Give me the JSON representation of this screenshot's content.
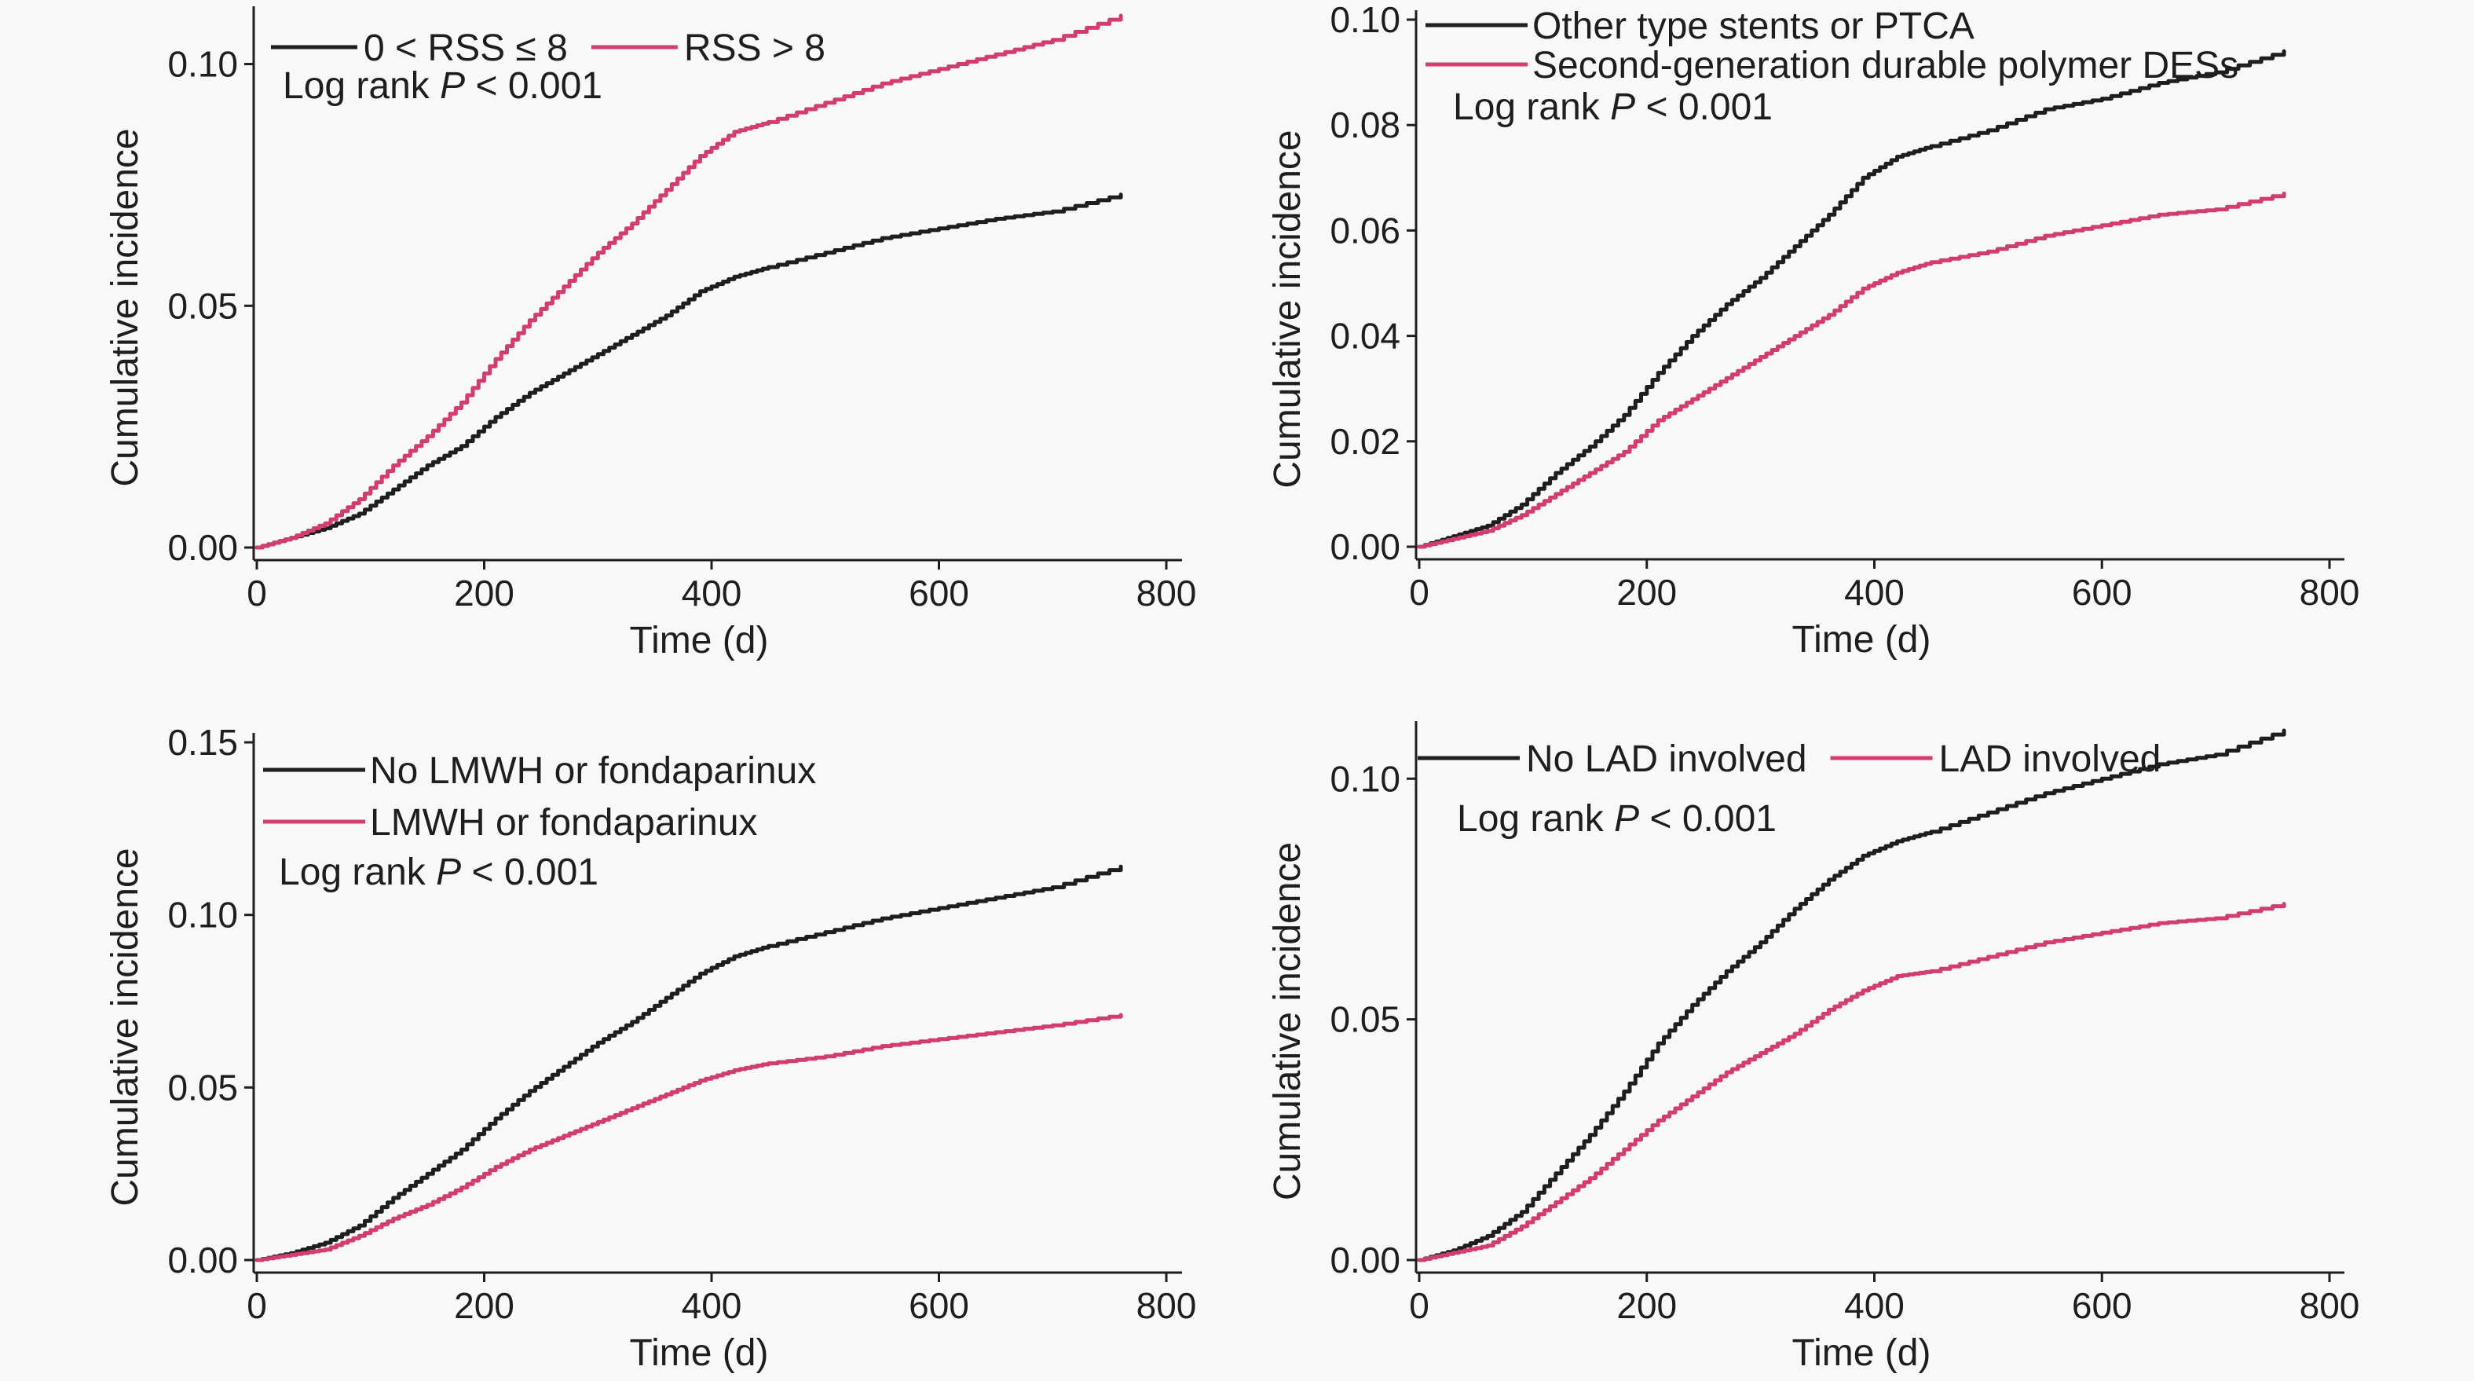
{
  "colors": {
    "black_series": "#1e1e1e",
    "pink_series": "#d23c6e",
    "background": "#f8f8f8"
  },
  "chart_data": [
    {
      "type": "line",
      "xlabel": "Time (d)",
      "ylabel": "Cumulative incidence",
      "xlim": [
        0,
        800
      ],
      "ylim": [
        0,
        0.11
      ],
      "xticks": [
        0,
        200,
        400,
        600,
        800
      ],
      "xtick_labels": [
        "0",
        "200",
        "400",
        "600",
        "800"
      ],
      "yticks": [
        0,
        0.05,
        0.1
      ],
      "ytick_labels": [
        "0.00",
        "0.05",
        "0.10"
      ],
      "legend_layout": "row",
      "legend_position": "top-left",
      "annotation": {
        "prefix": "Log rank ",
        "italic": "P",
        "suffix": " < 0.001"
      },
      "series": [
        {
          "name": "0 < RSS ≤ 8",
          "color": "#1e1e1e",
          "x": [
            0,
            30,
            60,
            90,
            120,
            150,
            180,
            210,
            240,
            270,
            300,
            330,
            360,
            390,
            420,
            450,
            500,
            550,
            600,
            650,
            700,
            760
          ],
          "y": [
            0,
            0.002,
            0.004,
            0.007,
            0.012,
            0.017,
            0.021,
            0.027,
            0.032,
            0.036,
            0.04,
            0.044,
            0.048,
            0.053,
            0.056,
            0.058,
            0.061,
            0.064,
            0.066,
            0.068,
            0.0695,
            0.073
          ]
        },
        {
          "name": "RSS > 8",
          "color": "#d23c6e",
          "x": [
            0,
            30,
            60,
            90,
            120,
            150,
            180,
            210,
            240,
            270,
            300,
            330,
            360,
            390,
            420,
            450,
            500,
            550,
            600,
            650,
            700,
            760
          ],
          "y": [
            0,
            0.002,
            0.005,
            0.01,
            0.017,
            0.023,
            0.03,
            0.039,
            0.047,
            0.054,
            0.061,
            0.067,
            0.074,
            0.081,
            0.086,
            0.088,
            0.092,
            0.096,
            0.099,
            0.102,
            0.105,
            0.11
          ]
        }
      ]
    },
    {
      "type": "line",
      "xlabel": "Time (d)",
      "ylabel": "Cumulative incidence",
      "xlim": [
        0,
        800
      ],
      "ylim": [
        0,
        0.1
      ],
      "xticks": [
        0,
        200,
        400,
        600,
        800
      ],
      "xtick_labels": [
        "0",
        "200",
        "400",
        "600",
        "800"
      ],
      "yticks": [
        0,
        0.02,
        0.04,
        0.06,
        0.08,
        0.1
      ],
      "ytick_labels": [
        "0.00",
        "0.02",
        "0.04",
        "0.06",
        "0.08",
        "0.10"
      ],
      "legend_layout": "column",
      "legend_position": "top-left",
      "annotation": {
        "prefix": "Log rank ",
        "italic": "P",
        "suffix": " < 0.001"
      },
      "series": [
        {
          "name": "Other type stents or PTCA",
          "color": "#1e1e1e",
          "x": [
            0,
            30,
            60,
            90,
            120,
            150,
            180,
            210,
            240,
            270,
            300,
            330,
            360,
            390,
            420,
            450,
            500,
            550,
            600,
            650,
            700,
            760
          ],
          "y": [
            0,
            0.002,
            0.004,
            0.008,
            0.014,
            0.019,
            0.025,
            0.033,
            0.04,
            0.046,
            0.051,
            0.057,
            0.063,
            0.07,
            0.074,
            0.076,
            0.079,
            0.083,
            0.085,
            0.088,
            0.09,
            0.094
          ]
        },
        {
          "name": "Second-generation durable polymer DESs",
          "color": "#d23c6e",
          "x": [
            0,
            30,
            60,
            90,
            120,
            150,
            180,
            210,
            240,
            270,
            300,
            330,
            360,
            390,
            420,
            450,
            500,
            550,
            600,
            650,
            700,
            760
          ],
          "y": [
            0,
            0.0015,
            0.003,
            0.006,
            0.01,
            0.014,
            0.018,
            0.024,
            0.028,
            0.032,
            0.036,
            0.04,
            0.044,
            0.049,
            0.052,
            0.054,
            0.056,
            0.059,
            0.061,
            0.063,
            0.064,
            0.067
          ]
        }
      ]
    },
    {
      "type": "line",
      "xlabel": "Time (d)",
      "ylabel": "Cumulative incidence",
      "xlim": [
        0,
        800
      ],
      "ylim": [
        0,
        0.15
      ],
      "xticks": [
        0,
        200,
        400,
        600,
        800
      ],
      "xtick_labels": [
        "0",
        "200",
        "400",
        "600",
        "800"
      ],
      "yticks": [
        0,
        0.05,
        0.1,
        0.15
      ],
      "ytick_labels": [
        "0.00",
        "0.05",
        "0.10",
        "0.15"
      ],
      "legend_layout": "column",
      "legend_position": "top-left",
      "annotation": {
        "prefix": "Log rank ",
        "italic": "P",
        "suffix": " < 0.001"
      },
      "series": [
        {
          "name": "No LMWH or fondaparinux",
          "color": "#1e1e1e",
          "x": [
            0,
            30,
            60,
            90,
            120,
            150,
            180,
            210,
            240,
            270,
            300,
            330,
            360,
            390,
            420,
            450,
            500,
            550,
            600,
            650,
            700,
            760
          ],
          "y": [
            0,
            0.002,
            0.005,
            0.01,
            0.018,
            0.025,
            0.032,
            0.041,
            0.049,
            0.056,
            0.063,
            0.069,
            0.076,
            0.083,
            0.088,
            0.091,
            0.095,
            0.099,
            0.102,
            0.105,
            0.108,
            0.114
          ]
        },
        {
          "name": "LMWH or fondaparinux",
          "color": "#d23c6e",
          "x": [
            0,
            30,
            60,
            90,
            120,
            150,
            180,
            210,
            240,
            270,
            300,
            330,
            360,
            390,
            420,
            450,
            500,
            550,
            600,
            650,
            700,
            760
          ],
          "y": [
            0,
            0.0015,
            0.003,
            0.007,
            0.012,
            0.016,
            0.021,
            0.027,
            0.032,
            0.036,
            0.04,
            0.044,
            0.048,
            0.052,
            0.055,
            0.057,
            0.059,
            0.062,
            0.064,
            0.066,
            0.068,
            0.071
          ]
        }
      ]
    },
    {
      "type": "line",
      "xlabel": "Time (d)",
      "ylabel": "Cumulative incidence",
      "xlim": [
        0,
        800
      ],
      "ylim": [
        0,
        0.11
      ],
      "xticks": [
        0,
        200,
        400,
        600,
        800
      ],
      "xtick_labels": [
        "0",
        "200",
        "400",
        "600",
        "800"
      ],
      "yticks": [
        0,
        0.05,
        0.1
      ],
      "ytick_labels": [
        "0.00",
        "0.05",
        "0.10"
      ],
      "legend_layout": "row",
      "legend_position": "top-left",
      "annotation": {
        "prefix": "Log rank ",
        "italic": "P",
        "suffix": " < 0.001"
      },
      "series": [
        {
          "name": "No LAD involved",
          "color": "#1e1e1e",
          "x": [
            0,
            30,
            60,
            90,
            120,
            150,
            180,
            210,
            240,
            270,
            300,
            330,
            360,
            390,
            420,
            450,
            500,
            550,
            600,
            650,
            700,
            760
          ],
          "y": [
            0,
            0.002,
            0.005,
            0.01,
            0.018,
            0.026,
            0.035,
            0.045,
            0.053,
            0.06,
            0.066,
            0.073,
            0.079,
            0.084,
            0.087,
            0.089,
            0.093,
            0.097,
            0.1,
            0.103,
            0.105,
            0.11
          ]
        },
        {
          "name": "LAD involved",
          "color": "#d23c6e",
          "x": [
            0,
            30,
            60,
            90,
            120,
            150,
            180,
            210,
            240,
            270,
            300,
            330,
            360,
            390,
            420,
            450,
            500,
            550,
            600,
            650,
            700,
            760
          ],
          "y": [
            0,
            0.0015,
            0.003,
            0.007,
            0.012,
            0.017,
            0.023,
            0.029,
            0.034,
            0.039,
            0.043,
            0.047,
            0.052,
            0.056,
            0.059,
            0.06,
            0.063,
            0.066,
            0.068,
            0.07,
            0.071,
            0.074
          ]
        }
      ]
    }
  ]
}
